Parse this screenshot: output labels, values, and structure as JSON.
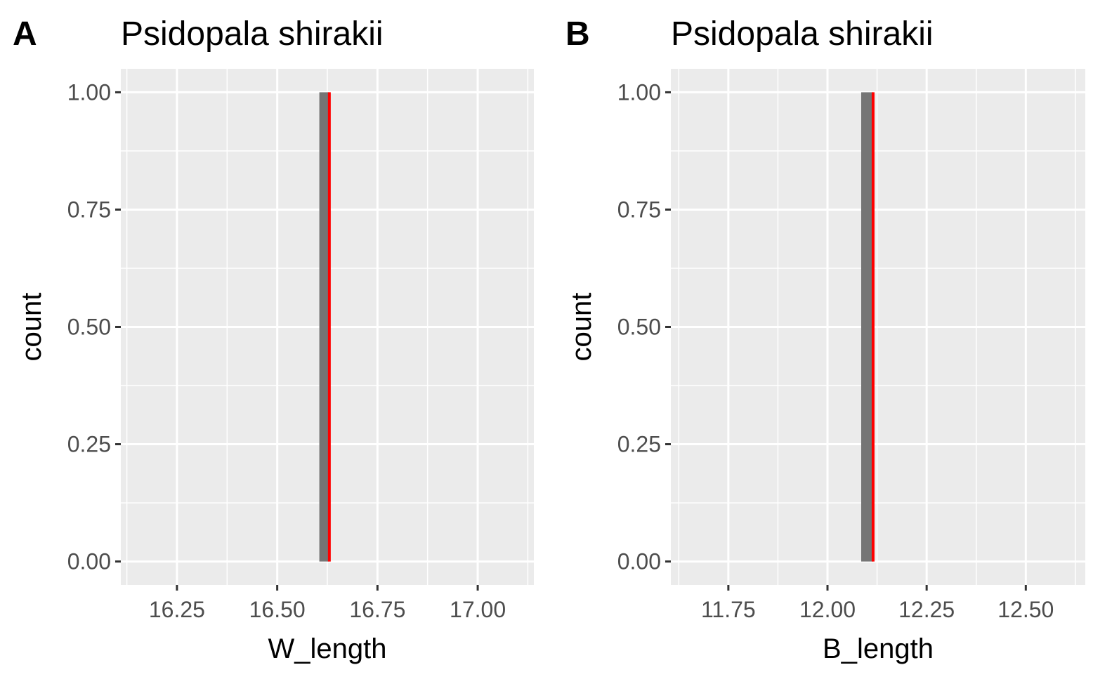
{
  "chart_data": [
    {
      "type": "bar",
      "panel": "A",
      "title": "Psidopala shirakii",
      "xlabel": "W_length",
      "ylabel": "count",
      "xlim": [
        16.11,
        17.14
      ],
      "ylim": [
        -0.05,
        1.05
      ],
      "x_ticks": [
        16.25,
        16.5,
        16.75,
        17.0
      ],
      "x_tick_labels": [
        "16.25",
        "16.50",
        "16.75",
        "17.00"
      ],
      "y_ticks": [
        0,
        0.25,
        0.5,
        0.75,
        1.0
      ],
      "y_tick_labels": [
        "0.00",
        "0.25",
        "0.50",
        "0.75",
        "1.00"
      ],
      "bars": [
        {
          "xmin": 16.605,
          "xmax": 16.63,
          "count": 1
        }
      ],
      "reference_line": {
        "x": 16.63,
        "color": "#ff0000"
      },
      "bar_color": "#757575",
      "grid": true,
      "panel_background": "#ebebeb"
    },
    {
      "type": "bar",
      "panel": "B",
      "title": "Psidopala shirakii",
      "xlabel": "B_length",
      "ylabel": "count",
      "xlim": [
        11.605,
        12.65
      ],
      "ylim": [
        -0.05,
        1.05
      ],
      "x_ticks": [
        11.75,
        12.0,
        12.25,
        12.5
      ],
      "x_tick_labels": [
        "11.75",
        "12.00",
        "12.25",
        "12.50"
      ],
      "y_ticks": [
        0,
        0.25,
        0.5,
        0.75,
        1.0
      ],
      "y_tick_labels": [
        "0.00",
        "0.25",
        "0.50",
        "0.75",
        "1.00"
      ],
      "bars": [
        {
          "xmin": 12.085,
          "xmax": 12.115,
          "count": 1
        }
      ],
      "reference_line": {
        "x": 12.115,
        "color": "#ff0000"
      },
      "bar_color": "#757575",
      "grid": true,
      "panel_background": "#ebebeb"
    }
  ]
}
